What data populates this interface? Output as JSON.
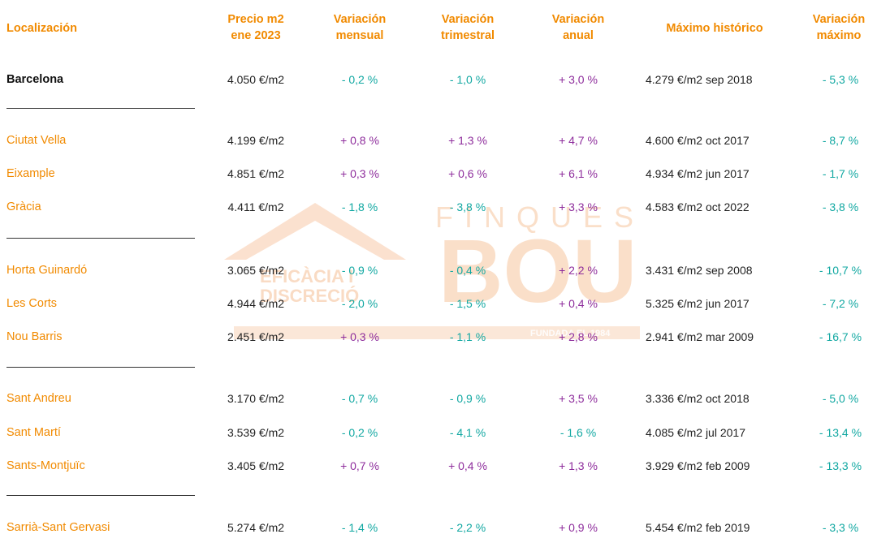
{
  "watermark": {
    "brand_top": "FINQUES",
    "brand_main": "BOU",
    "tagline_1": "EFICÀCIA I",
    "tagline_2": "DISCRECIÓ",
    "tagline_3": "FUNDADA EL 1984"
  },
  "headers": {
    "location": "Localización",
    "price_1": "Precio m2",
    "price_2": "ene 2023",
    "monthly_1": "Variación",
    "monthly_2": "mensual",
    "quarterly_1": "Variación",
    "quarterly_2": "trimestral",
    "annual_1": "Variación",
    "annual_2": "anual",
    "historic": "Máximo histórico",
    "maxvar_1": "Variación",
    "maxvar_2": "máximo"
  },
  "rows": [
    {
      "location": "Barcelona",
      "price": "4.050 €/m2",
      "monthly": "- 0,2 %",
      "quarterly": "- 1,0 %",
      "annual": "+ 3,0 %",
      "historic": "4.279 €/m2 sep 2018",
      "maxvar": "- 5,3 %"
    },
    {
      "location": "Ciutat Vella",
      "price": "4.199 €/m2",
      "monthly": "+ 0,8 %",
      "quarterly": "+ 1,3 %",
      "annual": "+ 4,7 %",
      "historic": "4.600 €/m2 oct 2017",
      "maxvar": "- 8,7 %"
    },
    {
      "location": "Eixample",
      "price": "4.851 €/m2",
      "monthly": "+ 0,3 %",
      "quarterly": "+ 0,6 %",
      "annual": "+ 6,1 %",
      "historic": "4.934 €/m2 jun 2017",
      "maxvar": "- 1,7 %"
    },
    {
      "location": "Gràcia",
      "price": "4.411 €/m2",
      "monthly": "- 1,8 %",
      "quarterly": "- 3,8 %",
      "annual": "+ 3,3 %",
      "historic": "4.583 €/m2 oct 2022",
      "maxvar": "- 3,8 %"
    },
    {
      "location": "Horta Guinardó",
      "price": "3.065 €/m2",
      "monthly": "- 0,9 %",
      "quarterly": "- 0,4 %",
      "annual": "+ 2,2 %",
      "historic": "3.431 €/m2 sep 2008",
      "maxvar": "- 10,7 %"
    },
    {
      "location": "Les Corts",
      "price": "4.944 €/m2",
      "monthly": "- 2,0 %",
      "quarterly": "- 1,5 %",
      "annual": "+ 0,4 %",
      "historic": "5.325 €/m2 jun 2017",
      "maxvar": "- 7,2 %"
    },
    {
      "location": "Nou Barris",
      "price": "2.451 €/m2",
      "monthly": "+ 0,3 %",
      "quarterly": "- 1,1 %",
      "annual": "+ 2,8 %",
      "historic": "2.941 €/m2 mar 2009",
      "maxvar": "- 16,7 %"
    },
    {
      "location": "Sant Andreu",
      "price": "3.170 €/m2",
      "monthly": "- 0,7 %",
      "quarterly": "- 0,9 %",
      "annual": "+ 3,5 %",
      "historic": "3.336 €/m2 oct 2018",
      "maxvar": "- 5,0 %"
    },
    {
      "location": "Sant Martí",
      "price": "3.539 €/m2",
      "monthly": "- 0,2 %",
      "quarterly": "- 4,1 %",
      "annual": "- 1,6 %",
      "historic": "4.085 €/m2 jul 2017",
      "maxvar": "- 13,4 %"
    },
    {
      "location": "Sants-Montjuïc",
      "price": "3.405 €/m2",
      "monthly": "+ 0,7 %",
      "quarterly": "+ 0,4 %",
      "annual": "+ 1,3 %",
      "historic": "3.929 €/m2 feb 2009",
      "maxvar": "- 13,3 %"
    },
    {
      "location": "Sarrià-Sant Gervasi",
      "price": "5.274 €/m2",
      "monthly": "- 1,4 %",
      "quarterly": "- 2,2 %",
      "annual": "+ 0,9 %",
      "historic": "5.454 €/m2 feb 2019",
      "maxvar": "- 3,3 %"
    }
  ],
  "colors": {
    "header": "#f18a00",
    "positive": "#8e2d9c",
    "negative": "#12a8a2"
  }
}
